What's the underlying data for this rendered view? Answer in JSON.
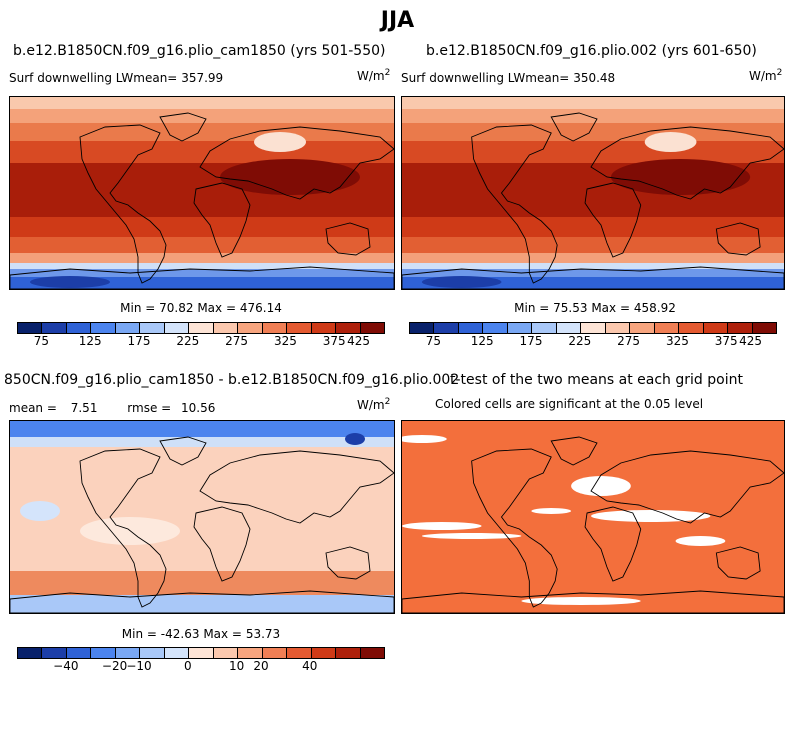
{
  "figure_title": "JJA",
  "panels": [
    {
      "title": "b.e12.B1850CN.f09_g16.plio_cam1850 (yrs 501-550)",
      "variable": "Surf downwelling LW",
      "mean_label": "mean=",
      "mean_value": "357.99",
      "units_base": "W/m",
      "units_exp": "2",
      "min_label": "Min =",
      "min_value": "70.82",
      "max_label": "Max =",
      "max_value": "476.14"
    },
    {
      "title": "b.e12.B1850CN.f09_g16.plio.002 (yrs 601-650)",
      "variable": "Surf downwelling LW",
      "mean_label": "mean=",
      "mean_value": "350.48",
      "units_base": "W/m",
      "units_exp": "2",
      "min_label": "Min =",
      "min_value": "75.53",
      "max_label": "Max =",
      "max_value": "458.92"
    },
    {
      "title": "850CN.f09_g16.plio_cam1850 - b.e12.B1850CN.f09_g16.plio.002",
      "mean_label": "mean =",
      "mean_value": "7.51",
      "rmse_label": "rmse =",
      "rmse_value": "10.56",
      "units_base": "W/m",
      "units_exp": "2",
      "min_label": "Min =",
      "min_value": "-42.63",
      "max_label": "Max =",
      "max_value": "53.73"
    },
    {
      "title": "t-test of the two means at each grid point",
      "subtitle": "Colored cells are significant at the 0.05 level"
    }
  ],
  "colorbar_abs": {
    "ticks": [
      "75",
      "125",
      "175",
      "225",
      "275",
      "325",
      "375",
      "425"
    ],
    "colors": [
      "#08216b",
      "#1c3ea8",
      "#2f62d6",
      "#4c84ee",
      "#7aa8f4",
      "#a9c8f8",
      "#d4e4fb",
      "#fde4d6",
      "#fbc8ae",
      "#f7a57f",
      "#f07f55",
      "#e45a31",
      "#cf3a17",
      "#ae200b",
      "#7f0c05"
    ]
  },
  "colorbar_diff": {
    "ticks": [
      "−40",
      "−20",
      "−10",
      "0",
      "10",
      "20",
      "40"
    ],
    "colors": [
      "#08216b",
      "#1c3ea8",
      "#2f62d6",
      "#4c84ee",
      "#7aa8f4",
      "#a9c8f8",
      "#d4e4fb",
      "#fde4d6",
      "#fbc8ae",
      "#f7a57f",
      "#f07f55",
      "#e45a31",
      "#cf3a17",
      "#ae200b",
      "#7f0c05"
    ]
  },
  "chart_data": [
    {
      "type": "heatmap",
      "title": "b.e12.B1850CN.f09_g16.plio_cam1850 (yrs 501-550)",
      "variable": "Surf downwelling LW",
      "units": "W/m2",
      "mean": 357.99,
      "min": 70.82,
      "max": 476.14,
      "colorbar_ticks": [
        75,
        125,
        175,
        225,
        275,
        325,
        375,
        425
      ]
    },
    {
      "type": "heatmap",
      "title": "b.e12.B1850CN.f09_g16.plio.002 (yrs 601-650)",
      "variable": "Surf downwelling LW",
      "units": "W/m2",
      "mean": 350.48,
      "min": 75.53,
      "max": 458.92,
      "colorbar_ticks": [
        75,
        125,
        175,
        225,
        275,
        325,
        375,
        425
      ]
    },
    {
      "type": "heatmap",
      "title": "850CN.f09_g16.plio_cam1850 - b.e12.B1850CN.f09_g16.plio.002",
      "units": "W/m2",
      "mean": 7.51,
      "rmse": 10.56,
      "min": -42.63,
      "max": 53.73,
      "colorbar_ticks": [
        -40,
        -20,
        -10,
        0,
        10,
        20,
        40
      ]
    },
    {
      "type": "heatmap",
      "title": "t-test of the two means at each grid point",
      "subtitle": "Colored cells are significant at the 0.05 level"
    }
  ]
}
